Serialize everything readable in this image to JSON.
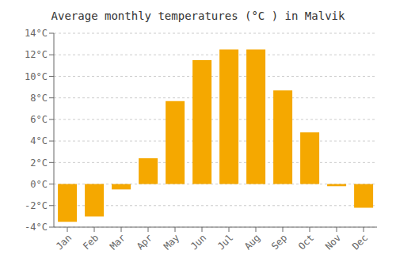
{
  "chart_data": {
    "type": "bar",
    "title": "Average monthly temperatures (°C ) in Malvik",
    "categories": [
      "Jan",
      "Feb",
      "Mar",
      "Apr",
      "May",
      "Jun",
      "Jul",
      "Aug",
      "Sep",
      "Oct",
      "Nov",
      "Dec"
    ],
    "values": [
      -3.5,
      -3.0,
      -0.5,
      2.4,
      7.7,
      11.5,
      12.5,
      12.5,
      8.7,
      4.8,
      -0.2,
      -2.2
    ],
    "color": "#F5A800",
    "ylim": [
      -4,
      14
    ],
    "yticks": [
      {
        "value": -4,
        "label": "-4°C"
      },
      {
        "value": -2,
        "label": "-2°C"
      },
      {
        "value": 0,
        "label": "0°C"
      },
      {
        "value": 2,
        "label": "2°C"
      },
      {
        "value": 4,
        "label": "4°C"
      },
      {
        "value": 6,
        "label": "6°C"
      },
      {
        "value": 8,
        "label": "8°C"
      },
      {
        "value": 10,
        "label": "10°C"
      },
      {
        "value": 12,
        "label": "12°C"
      },
      {
        "value": 14,
        "label": "14°C"
      }
    ],
    "grid": true
  }
}
